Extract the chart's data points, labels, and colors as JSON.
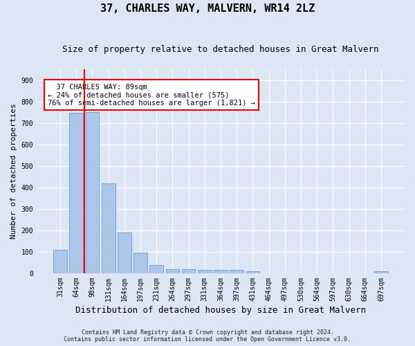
{
  "title": "37, CHARLES WAY, MALVERN, WR14 2LZ",
  "subtitle": "Size of property relative to detached houses in Great Malvern",
  "xlabel": "Distribution of detached houses by size in Great Malvern",
  "ylabel": "Number of detached properties",
  "footnote1": "Contains HM Land Registry data © Crown copyright and database right 2024.",
  "footnote2": "Contains public sector information licensed under the Open Government Licence v3.0.",
  "categories": [
    "31sqm",
    "64sqm",
    "98sqm",
    "131sqm",
    "164sqm",
    "197sqm",
    "231sqm",
    "264sqm",
    "297sqm",
    "331sqm",
    "364sqm",
    "397sqm",
    "431sqm",
    "464sqm",
    "497sqm",
    "530sqm",
    "564sqm",
    "597sqm",
    "630sqm",
    "664sqm",
    "697sqm"
  ],
  "values": [
    110,
    748,
    750,
    420,
    190,
    95,
    40,
    20,
    20,
    17,
    17,
    15,
    8,
    0,
    0,
    0,
    0,
    0,
    0,
    0,
    8
  ],
  "bar_color": "#aec6e8",
  "bar_edge_color": "#5a9fd4",
  "vline_color": "red",
  "vline_x_index": 1.5,
  "annotation_line1": "  37 CHARLES WAY: 89sqm",
  "annotation_line2": "← 24% of detached houses are smaller (575)",
  "annotation_line3": "76% of semi-detached houses are larger (1,821) →",
  "annotation_box_color": "white",
  "annotation_box_edge_color": "red",
  "ylim": [
    0,
    950
  ],
  "yticks": [
    0,
    100,
    200,
    300,
    400,
    500,
    600,
    700,
    800,
    900
  ],
  "bg_color": "#dce6f5",
  "plot_bg_color": "#dce6f5",
  "grid_color": "white",
  "title_fontsize": 11,
  "subtitle_fontsize": 9,
  "ylabel_fontsize": 8,
  "xlabel_fontsize": 9,
  "tick_fontsize": 7,
  "footnote_fontsize": 6
}
